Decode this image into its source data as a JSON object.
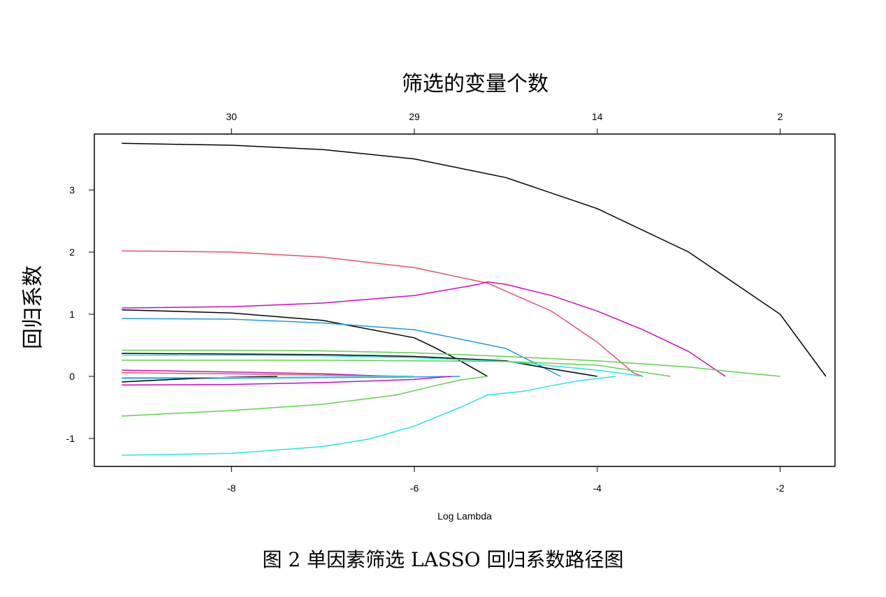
{
  "chart_data": {
    "type": "line",
    "top_axis_label": "筛选的变量个数",
    "ylabel": "回归系数",
    "xlabel": "Log Lambda",
    "xlim": [
      -9.5,
      -1.4
    ],
    "ylim": [
      -1.45,
      3.9
    ],
    "x_ticks": [
      -8,
      -6,
      -4,
      -2
    ],
    "y_ticks": [
      -1,
      0,
      1,
      2,
      3
    ],
    "top_ticks": [
      {
        "x": -8,
        "label": "30"
      },
      {
        "x": -6,
        "label": "29"
      },
      {
        "x": -4,
        "label": "14"
      },
      {
        "x": -2,
        "label": "2"
      }
    ],
    "grid": false,
    "series": [
      {
        "color": "#000000",
        "x": [
          -9.2,
          -8,
          -7,
          -6,
          -5,
          -4,
          -3,
          -2,
          -1.5
        ],
        "y": [
          3.75,
          3.72,
          3.65,
          3.5,
          3.2,
          2.7,
          2.0,
          1.0,
          0
        ]
      },
      {
        "color": "#DF536B",
        "x": [
          -9.2,
          -8,
          -7,
          -6,
          -5.2,
          -4.5,
          -4,
          -3.6,
          -3.5
        ],
        "y": [
          2.02,
          2.0,
          1.92,
          1.75,
          1.5,
          1.05,
          0.55,
          0.05,
          0
        ]
      },
      {
        "color": "#CD0BBC",
        "x": [
          -9.2,
          -8,
          -7,
          -6,
          -5.3,
          -5.2,
          -5,
          -4.5,
          -4,
          -3.5,
          -3,
          -2.7,
          -2.6
        ],
        "y": [
          1.1,
          1.12,
          1.18,
          1.3,
          1.48,
          1.52,
          1.48,
          1.3,
          1.05,
          0.75,
          0.4,
          0.1,
          0
        ]
      },
      {
        "color": "#000000",
        "x": [
          -9.2,
          -8,
          -7,
          -6,
          -5.8,
          -5.5,
          -5.2
        ],
        "y": [
          1.07,
          1.02,
          0.9,
          0.62,
          0.48,
          0.25,
          0
        ]
      },
      {
        "color": "#2297E6",
        "x": [
          -9.2,
          -8,
          -7,
          -6,
          -5,
          -4.6,
          -4.4
        ],
        "y": [
          0.93,
          0.92,
          0.86,
          0.75,
          0.45,
          0.15,
          0
        ]
      },
      {
        "color": "#61D04F",
        "x": [
          -9.2,
          -8,
          -7,
          -6,
          -5,
          -4,
          -3,
          -2.5,
          -2
        ],
        "y": [
          0.42,
          0.42,
          0.41,
          0.38,
          0.32,
          0.25,
          0.15,
          0.07,
          0
        ]
      },
      {
        "color": "#000000",
        "x": [
          -9.2,
          -8,
          -7,
          -6,
          -5,
          -4.5,
          -4
        ],
        "y": [
          0.37,
          0.36,
          0.35,
          0.32,
          0.25,
          0.12,
          0
        ]
      },
      {
        "color": "#28E2E5",
        "x": [
          -9.2,
          -8,
          -7,
          -6,
          -5,
          -4,
          -3.5
        ],
        "y": [
          0.34,
          0.34,
          0.33,
          0.3,
          0.24,
          0.1,
          0
        ]
      },
      {
        "color": "#61D04F",
        "x": [
          -9.2,
          -8,
          -7,
          -6,
          -5,
          -4,
          -3.2
        ],
        "y": [
          0.26,
          0.26,
          0.26,
          0.25,
          0.24,
          0.18,
          0
        ]
      },
      {
        "color": "#CD0BBC",
        "x": [
          -9.2,
          -8,
          -7,
          -6.5,
          -6.2
        ],
        "y": [
          0.1,
          0.07,
          0.04,
          0.015,
          0
        ]
      },
      {
        "color": "#DF536B",
        "x": [
          -9.2,
          -8,
          -7,
          -6
        ],
        "y": [
          0.06,
          0.04,
          0.02,
          0
        ]
      },
      {
        "color": "#2297E6",
        "x": [
          -9.2,
          -8,
          -7,
          -6,
          -5.5
        ],
        "y": [
          -0.03,
          -0.03,
          -0.02,
          -0.01,
          0
        ]
      },
      {
        "color": "#000000",
        "x": [
          -9.2,
          -8.5,
          -8,
          -7.5
        ],
        "y": [
          -0.09,
          -0.04,
          -0.015,
          0
        ]
      },
      {
        "color": "#28E2E5",
        "x": [
          -9.2,
          -8,
          -7,
          -6
        ],
        "y": [
          -0.02,
          -0.02,
          -0.01,
          0
        ]
      },
      {
        "color": "#CD0BBC",
        "x": [
          -9.2,
          -8,
          -7,
          -6,
          -5.6
        ],
        "y": [
          -0.14,
          -0.13,
          -0.1,
          -0.05,
          0
        ]
      },
      {
        "color": "#61D04F",
        "x": [
          -9.2,
          -8,
          -7,
          -6.2,
          -5.8,
          -5.5,
          -5.2
        ],
        "y": [
          -0.64,
          -0.55,
          -0.45,
          -0.3,
          -0.16,
          -0.06,
          0
        ]
      },
      {
        "color": "#28E2E5",
        "x": [
          -9.2,
          -8,
          -7,
          -6.5,
          -6,
          -5.5,
          -5.2,
          -4.8,
          -4.5,
          -4.2,
          -3.8
        ],
        "y": [
          -1.27,
          -1.24,
          -1.13,
          -1.01,
          -0.8,
          -0.5,
          -0.3,
          -0.24,
          -0.15,
          -0.07,
          0
        ]
      }
    ]
  },
  "figure_caption": "图 2  单因素筛选 LASSO 回归系数路径图"
}
